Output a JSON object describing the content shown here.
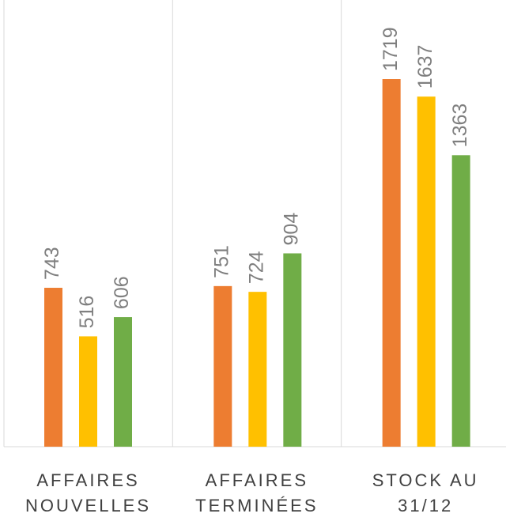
{
  "chart_data": {
    "type": "bar",
    "categories": [
      "AFFAIRES\nNOUVELLES",
      "AFFAIRES\nTERMINÉES",
      "STOCK AU\n31/12"
    ],
    "series": [
      {
        "color": "#ED7D31",
        "values": [
          743,
          751,
          1719
        ]
      },
      {
        "color": "#FFC000",
        "values": [
          516,
          724,
          1637
        ]
      },
      {
        "color": "#70AD47",
        "values": [
          606,
          904,
          1363
        ]
      }
    ]
  }
}
